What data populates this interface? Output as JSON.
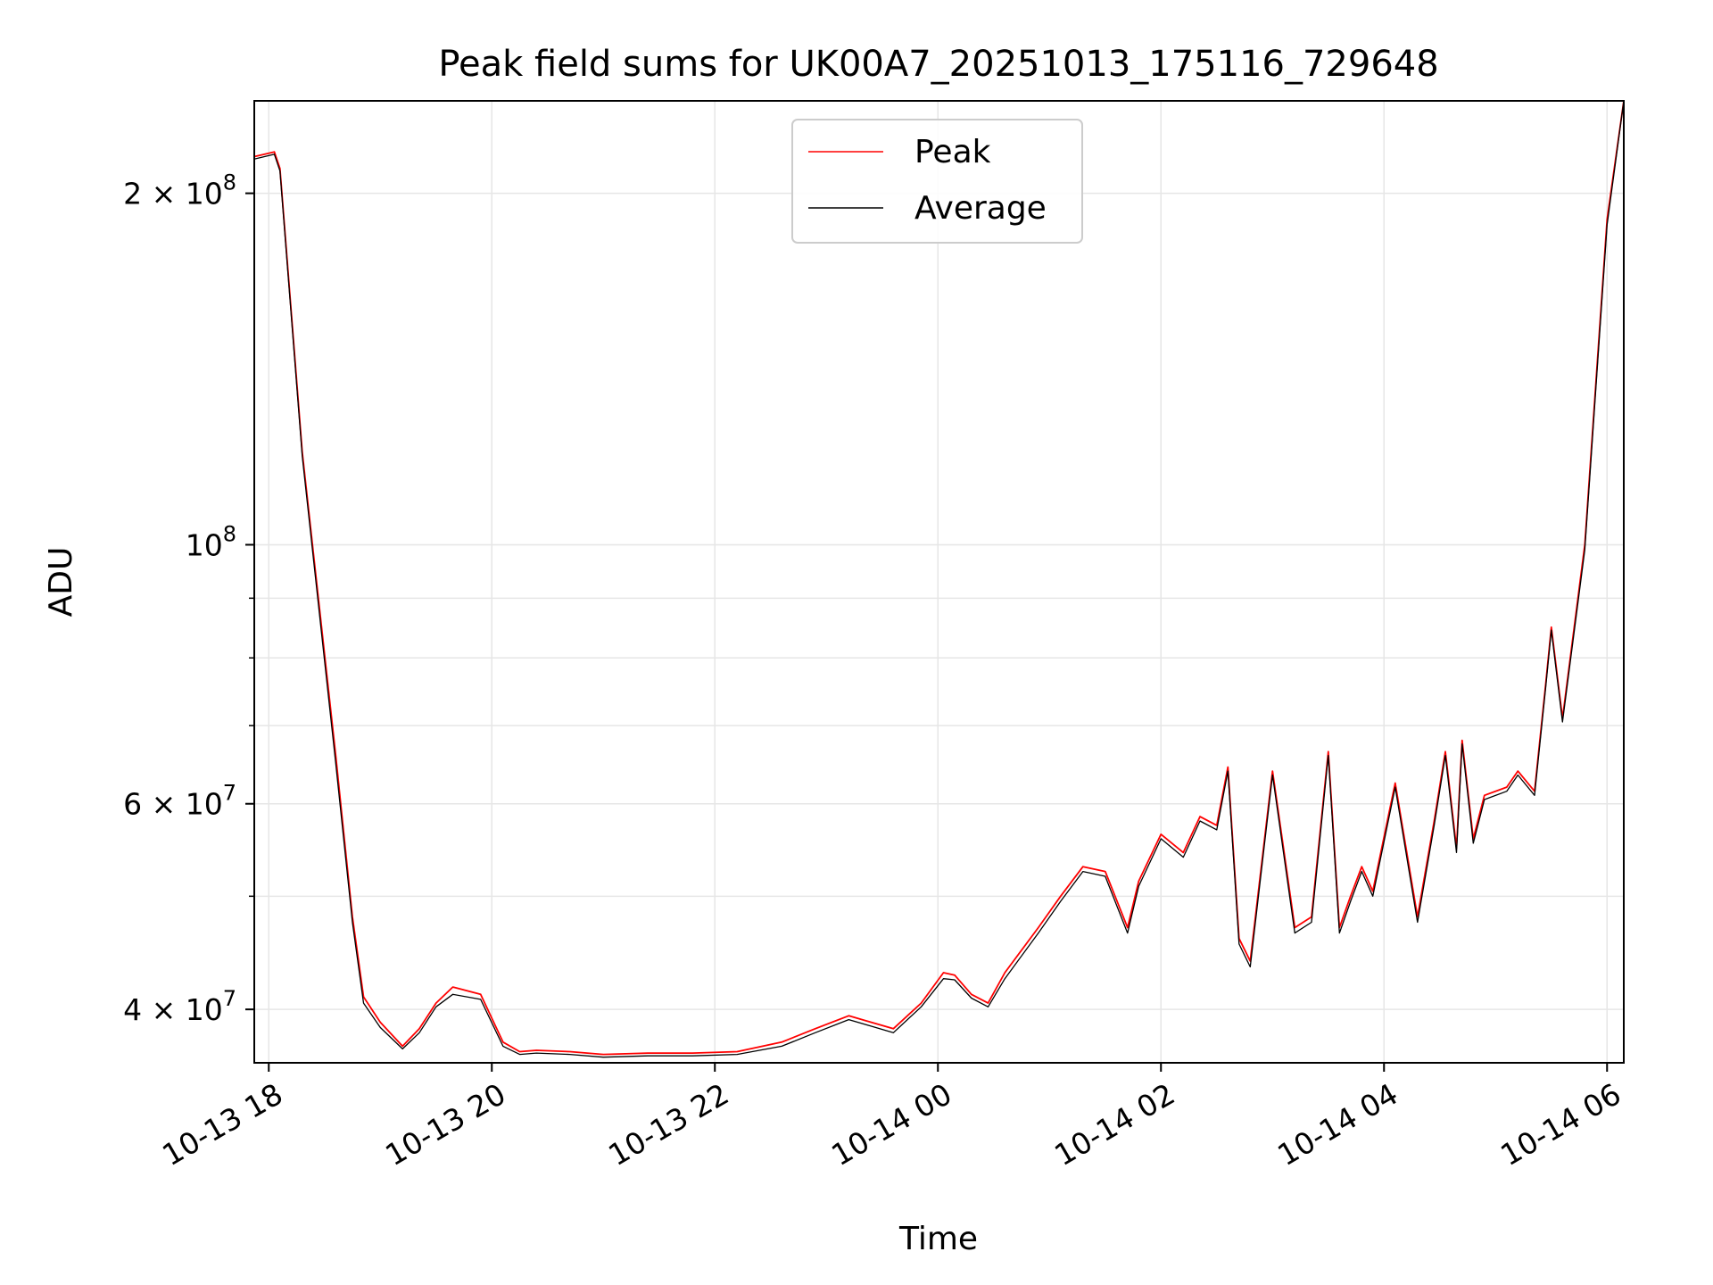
{
  "chart_data": {
    "type": "line",
    "title": "Peak field sums for UK00A7_20251013_175116_729648",
    "xlabel": "Time",
    "ylabel": "ADU",
    "yscale": "log",
    "ylim": [
      36000000,
      240000000
    ],
    "xlim_hours": [
      17.87,
      30.15
    ],
    "grid": true,
    "legend_position": "top-center",
    "x_ticks": [
      {
        "hour": 18,
        "label": "10-13 18"
      },
      {
        "hour": 20,
        "label": "10-13 20"
      },
      {
        "hour": 22,
        "label": "10-13 22"
      },
      {
        "hour": 24,
        "label": "10-14 00"
      },
      {
        "hour": 26,
        "label": "10-14 02"
      },
      {
        "hour": 28,
        "label": "10-14 04"
      },
      {
        "hour": 30,
        "label": "10-14 06"
      }
    ],
    "y_ticks": [
      {
        "value": 40000000,
        "mantissa": "4",
        "exp": "7"
      },
      {
        "value": 60000000,
        "mantissa": "6",
        "exp": "7"
      },
      {
        "value": 100000000,
        "mantissa": "",
        "exp": "8"
      },
      {
        "value": 200000000,
        "mantissa": "2",
        "exp": "8"
      }
    ],
    "y_minor_ticks": [
      50000000,
      70000000,
      80000000,
      90000000
    ],
    "series": [
      {
        "name": "Peak",
        "color": "#ff0000",
        "x": [
          17.87,
          18.05,
          18.1,
          18.3,
          18.6,
          18.75,
          18.85,
          19.0,
          19.2,
          19.35,
          19.5,
          19.65,
          19.9,
          20.1,
          20.25,
          20.4,
          20.7,
          21.0,
          21.4,
          21.8,
          22.2,
          22.6,
          22.9,
          23.2,
          23.4,
          23.6,
          23.85,
          24.05,
          24.15,
          24.3,
          24.45,
          24.6,
          24.9,
          25.1,
          25.3,
          25.5,
          25.7,
          25.8,
          26.0,
          26.2,
          26.35,
          26.5,
          26.6,
          26.7,
          26.8,
          27.0,
          27.2,
          27.35,
          27.5,
          27.6,
          27.7,
          27.8,
          27.9,
          28.1,
          28.3,
          28.45,
          28.55,
          28.65,
          28.7,
          28.8,
          28.9,
          29.1,
          29.2,
          29.35,
          29.45,
          29.5,
          29.6,
          29.8,
          30.0,
          30.15
        ],
        "values": [
          215000000,
          217000000,
          210000000,
          120000000,
          66000000,
          48000000,
          41000000,
          39000000,
          37200000,
          38500000,
          40500000,
          41800000,
          41200000,
          37500000,
          36800000,
          36900000,
          36800000,
          36600000,
          36700000,
          36700000,
          36800000,
          37500000,
          38500000,
          39500000,
          39000000,
          38500000,
          40500000,
          43000000,
          42800000,
          41200000,
          40500000,
          43000000,
          47000000,
          50000000,
          53000000,
          52500000,
          47000000,
          51500000,
          56500000,
          54500000,
          58500000,
          57500000,
          64500000,
          46000000,
          44000000,
          64000000,
          47000000,
          48000000,
          66500000,
          47000000,
          50000000,
          53000000,
          50500000,
          62500000,
          48000000,
          58000000,
          66500000,
          55000000,
          68000000,
          56000000,
          61000000,
          62000000,
          64000000,
          61500000,
          76000000,
          85000000,
          71000000,
          100000000,
          190000000,
          240000000
        ]
      },
      {
        "name": "Average",
        "color": "#000000",
        "x": [
          17.87,
          18.05,
          18.1,
          18.3,
          18.6,
          18.75,
          18.85,
          19.0,
          19.2,
          19.35,
          19.5,
          19.65,
          19.9,
          20.1,
          20.25,
          20.4,
          20.7,
          21.0,
          21.4,
          21.8,
          22.2,
          22.6,
          22.9,
          23.2,
          23.4,
          23.6,
          23.85,
          24.05,
          24.15,
          24.3,
          24.45,
          24.6,
          24.9,
          25.1,
          25.3,
          25.5,
          25.7,
          25.8,
          26.0,
          26.2,
          26.35,
          26.5,
          26.6,
          26.7,
          26.8,
          27.0,
          27.2,
          27.35,
          27.5,
          27.6,
          27.7,
          27.8,
          27.9,
          28.1,
          28.3,
          28.45,
          28.55,
          28.65,
          28.7,
          28.8,
          28.9,
          29.1,
          29.2,
          29.35,
          29.45,
          29.5,
          29.6,
          29.8,
          30.0,
          30.15
        ],
        "values": [
          214000000,
          216000000,
          209000000,
          119000000,
          65000000,
          47500000,
          40500000,
          38600000,
          37000000,
          38200000,
          40200000,
          41200000,
          40800000,
          37200000,
          36600000,
          36700000,
          36600000,
          36400000,
          36500000,
          36500000,
          36600000,
          37200000,
          38200000,
          39200000,
          38700000,
          38200000,
          40200000,
          42500000,
          42400000,
          40900000,
          40200000,
          42500000,
          46500000,
          49500000,
          52500000,
          52000000,
          46500000,
          51000000,
          56000000,
          54000000,
          58000000,
          57000000,
          64000000,
          45500000,
          43500000,
          63500000,
          46500000,
          47500000,
          66000000,
          46500000,
          49500000,
          52500000,
          50000000,
          62000000,
          47500000,
          57500000,
          66000000,
          54500000,
          67500000,
          55500000,
          60500000,
          61500000,
          63500000,
          61000000,
          75500000,
          84500000,
          70500000,
          99000000,
          188000000,
          240000000
        ]
      }
    ]
  }
}
